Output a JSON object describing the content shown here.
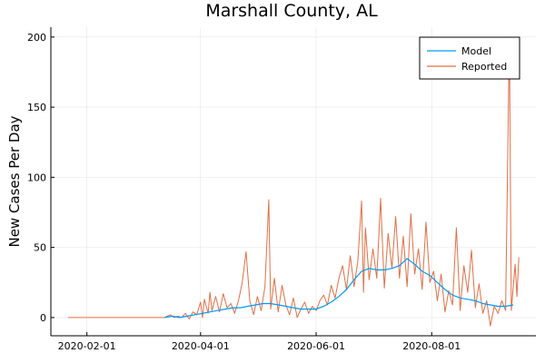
{
  "chart_data": {
    "type": "line",
    "title": "Marshall County, AL",
    "xlabel": "",
    "ylabel": "New Cases Per Day",
    "x_tick_labels": [
      "2020-02-01",
      "2020-04-01",
      "2020-06-01",
      "2020-08-01"
    ],
    "x_tick_dates": [
      "2020-02-01",
      "2020-04-01",
      "2020-06-01",
      "2020-08-01"
    ],
    "y_tick_labels": [
      "0",
      "50",
      "100",
      "150",
      "200"
    ],
    "ylim": [
      -13,
      207
    ],
    "xlim": [
      "2020-01-13",
      "2020-09-25"
    ],
    "grid": true,
    "legend_position": "top-right",
    "series": [
      {
        "name": "Model",
        "color": "#009af9",
        "points": [
          [
            "2020-03-13",
            0
          ],
          [
            "2020-03-17",
            1
          ],
          [
            "2020-03-21",
            0
          ],
          [
            "2020-03-25",
            1
          ],
          [
            "2020-03-29",
            2
          ],
          [
            "2020-04-02",
            3
          ],
          [
            "2020-04-06",
            4
          ],
          [
            "2020-04-10",
            5
          ],
          [
            "2020-04-14",
            6
          ],
          [
            "2020-04-18",
            7
          ],
          [
            "2020-04-22",
            7
          ],
          [
            "2020-04-26",
            8
          ],
          [
            "2020-04-30",
            9
          ],
          [
            "2020-05-04",
            10
          ],
          [
            "2020-05-08",
            10
          ],
          [
            "2020-05-12",
            9
          ],
          [
            "2020-05-16",
            8
          ],
          [
            "2020-05-20",
            7
          ],
          [
            "2020-05-24",
            6
          ],
          [
            "2020-05-28",
            6
          ],
          [
            "2020-06-01",
            6
          ],
          [
            "2020-06-05",
            8
          ],
          [
            "2020-06-09",
            11
          ],
          [
            "2020-06-13",
            15
          ],
          [
            "2020-06-17",
            20
          ],
          [
            "2020-06-21",
            27
          ],
          [
            "2020-06-25",
            33
          ],
          [
            "2020-06-29",
            35
          ],
          [
            "2020-07-03",
            34
          ],
          [
            "2020-07-07",
            34
          ],
          [
            "2020-07-11",
            35
          ],
          [
            "2020-07-15",
            37
          ],
          [
            "2020-07-19",
            42
          ],
          [
            "2020-07-23",
            38
          ],
          [
            "2020-07-27",
            33
          ],
          [
            "2020-07-31",
            30
          ],
          [
            "2020-08-04",
            25
          ],
          [
            "2020-08-08",
            20
          ],
          [
            "2020-08-12",
            16
          ],
          [
            "2020-08-16",
            14
          ],
          [
            "2020-08-20",
            13
          ],
          [
            "2020-08-24",
            12
          ],
          [
            "2020-08-28",
            10
          ],
          [
            "2020-09-01",
            9
          ],
          [
            "2020-09-05",
            8
          ],
          [
            "2020-09-09",
            8
          ],
          [
            "2020-09-13",
            9
          ]
        ]
      },
      {
        "name": "Reported",
        "color": "#e26f46",
        "points": [
          [
            "2020-01-22",
            0
          ],
          [
            "2020-03-13",
            0
          ],
          [
            "2020-03-16",
            2
          ],
          [
            "2020-03-18",
            0
          ],
          [
            "2020-03-20",
            1
          ],
          [
            "2020-03-22",
            0
          ],
          [
            "2020-03-24",
            3
          ],
          [
            "2020-03-26",
            -1
          ],
          [
            "2020-03-28",
            4
          ],
          [
            "2020-03-30",
            2
          ],
          [
            "2020-04-01",
            11
          ],
          [
            "2020-04-02",
            0
          ],
          [
            "2020-04-03",
            13
          ],
          [
            "2020-04-05",
            3
          ],
          [
            "2020-04-06",
            18
          ],
          [
            "2020-04-07",
            5
          ],
          [
            "2020-04-09",
            15
          ],
          [
            "2020-04-11",
            4
          ],
          [
            "2020-04-13",
            17
          ],
          [
            "2020-04-15",
            7
          ],
          [
            "2020-04-17",
            10
          ],
          [
            "2020-04-19",
            3
          ],
          [
            "2020-04-21",
            12
          ],
          [
            "2020-04-23",
            25
          ],
          [
            "2020-04-25",
            47
          ],
          [
            "2020-04-27",
            12
          ],
          [
            "2020-04-29",
            2
          ],
          [
            "2020-05-01",
            15
          ],
          [
            "2020-05-03",
            5
          ],
          [
            "2020-05-05",
            22
          ],
          [
            "2020-05-07",
            84
          ],
          [
            "2020-05-08",
            6
          ],
          [
            "2020-05-10",
            28
          ],
          [
            "2020-05-12",
            4
          ],
          [
            "2020-05-14",
            23
          ],
          [
            "2020-05-16",
            9
          ],
          [
            "2020-05-18",
            2
          ],
          [
            "2020-05-20",
            14
          ],
          [
            "2020-05-22",
            0
          ],
          [
            "2020-05-24",
            6
          ],
          [
            "2020-05-26",
            11
          ],
          [
            "2020-05-28",
            3
          ],
          [
            "2020-05-30",
            8
          ],
          [
            "2020-06-01",
            5
          ],
          [
            "2020-06-03",
            12
          ],
          [
            "2020-06-05",
            16
          ],
          [
            "2020-06-07",
            9
          ],
          [
            "2020-06-09",
            23
          ],
          [
            "2020-06-11",
            14
          ],
          [
            "2020-06-13",
            28
          ],
          [
            "2020-06-15",
            37
          ],
          [
            "2020-06-17",
            20
          ],
          [
            "2020-06-19",
            44
          ],
          [
            "2020-06-21",
            22
          ],
          [
            "2020-06-23",
            40
          ],
          [
            "2020-06-25",
            83
          ],
          [
            "2020-06-26",
            18
          ],
          [
            "2020-06-27",
            64
          ],
          [
            "2020-06-29",
            27
          ],
          [
            "2020-07-01",
            49
          ],
          [
            "2020-07-03",
            28
          ],
          [
            "2020-07-05",
            85
          ],
          [
            "2020-07-07",
            21
          ],
          [
            "2020-07-09",
            60
          ],
          [
            "2020-07-11",
            35
          ],
          [
            "2020-07-13",
            72
          ],
          [
            "2020-07-15",
            28
          ],
          [
            "2020-07-17",
            58
          ],
          [
            "2020-07-19",
            22
          ],
          [
            "2020-07-21",
            74
          ],
          [
            "2020-07-23",
            31
          ],
          [
            "2020-07-25",
            49
          ],
          [
            "2020-07-27",
            20
          ],
          [
            "2020-07-29",
            68
          ],
          [
            "2020-07-31",
            25
          ],
          [
            "2020-08-02",
            33
          ],
          [
            "2020-08-04",
            12
          ],
          [
            "2020-08-06",
            31
          ],
          [
            "2020-08-08",
            4
          ],
          [
            "2020-08-10",
            19
          ],
          [
            "2020-08-12",
            9
          ],
          [
            "2020-08-14",
            64
          ],
          [
            "2020-08-16",
            5
          ],
          [
            "2020-08-18",
            37
          ],
          [
            "2020-08-20",
            18
          ],
          [
            "2020-08-22",
            48
          ],
          [
            "2020-08-24",
            7
          ],
          [
            "2020-08-26",
            24
          ],
          [
            "2020-08-28",
            3
          ],
          [
            "2020-08-30",
            12
          ],
          [
            "2020-09-01",
            -6
          ],
          [
            "2020-09-03",
            8
          ],
          [
            "2020-09-05",
            3
          ],
          [
            "2020-09-07",
            12
          ],
          [
            "2020-09-09",
            5
          ],
          [
            "2020-09-11",
            200
          ],
          [
            "2020-09-12",
            5
          ],
          [
            "2020-09-14",
            38
          ],
          [
            "2020-09-15",
            15
          ],
          [
            "2020-09-16",
            43
          ]
        ]
      }
    ]
  }
}
